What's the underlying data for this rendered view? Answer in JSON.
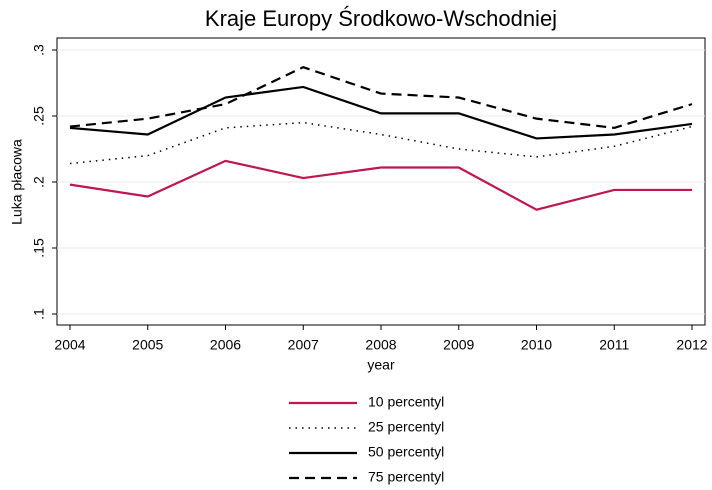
{
  "chart_data": {
    "type": "line",
    "title": "Kraje Europy Środkowo-Wschodniej",
    "xlabel": "year",
    "ylabel": "Luka płacowa",
    "x": [
      2004,
      2005,
      2006,
      2007,
      2008,
      2009,
      2010,
      2011,
      2012
    ],
    "xlim": [
      2004,
      2012
    ],
    "xticks": [
      2004,
      2005,
      2006,
      2007,
      2008,
      2009,
      2010,
      2011,
      2012
    ],
    "ylim": [
      0.1,
      0.3
    ],
    "yticks": [
      {
        "value": 0.1,
        "label": ".1"
      },
      {
        "value": 0.15,
        "label": ".15"
      },
      {
        "value": 0.2,
        "label": ".2"
      },
      {
        "value": 0.25,
        "label": ".25"
      },
      {
        "value": 0.3,
        "label": ".3"
      }
    ],
    "grid": true,
    "legend": "bottom",
    "series": [
      {
        "name": "10 percentyl",
        "color": "#c0164e",
        "style": "solid",
        "values": [
          0.198,
          0.189,
          0.216,
          0.203,
          0.211,
          0.211,
          0.179,
          0.194,
          0.194
        ]
      },
      {
        "name": "25 percentyl",
        "color": "#000000",
        "style": "dotted",
        "values": [
          0.214,
          0.22,
          0.241,
          0.245,
          0.236,
          0.225,
          0.219,
          0.227,
          0.242
        ]
      },
      {
        "name": "50 percentyl",
        "color": "#000000",
        "style": "solid",
        "values": [
          0.241,
          0.236,
          0.264,
          0.272,
          0.252,
          0.252,
          0.233,
          0.236,
          0.244
        ]
      },
      {
        "name": "75 percentyl",
        "color": "#000000",
        "style": "dashed",
        "values": [
          0.242,
          0.248,
          0.259,
          0.287,
          0.267,
          0.264,
          0.248,
          0.241,
          0.259
        ]
      }
    ]
  }
}
